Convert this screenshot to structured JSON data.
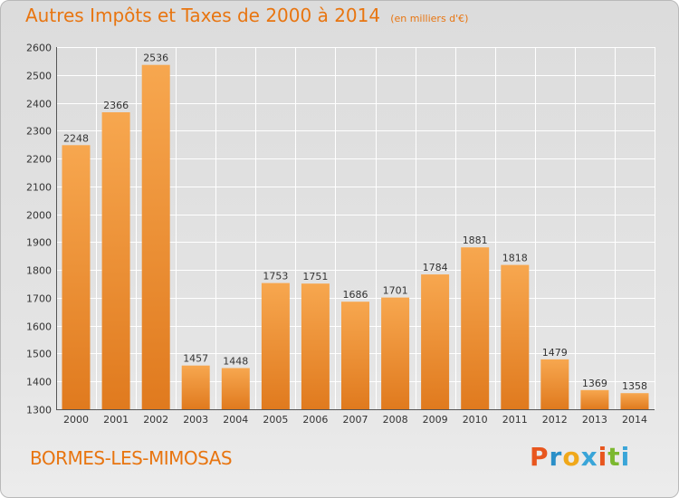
{
  "title": "Autres Impôts et Taxes de 2000 à 2014",
  "subtitle": "(en milliers d'€)",
  "location": "BORMES-LES-MIMOSAS",
  "brand": {
    "letters": [
      "P",
      "r",
      "o",
      "x",
      "i",
      "t",
      "i"
    ],
    "colors": [
      "#e8561e",
      "#2a8fc8",
      "#f0a81a",
      "#3aa5d8",
      "#e8561e",
      "#7cb82f",
      "#3aa5d8"
    ]
  },
  "colors": {
    "bar_light": "#f7a74f",
    "bar_dark": "#e07a1e",
    "accent": "#e87510",
    "grid": "#ffffff",
    "text": "#333333"
  },
  "chart_data": {
    "type": "bar",
    "title": "Autres Impôts et Taxes de 2000 à 2014",
    "subtitle": "(en milliers d'€)",
    "categories": [
      "2000",
      "2001",
      "2002",
      "2003",
      "2004",
      "2005",
      "2006",
      "2007",
      "2008",
      "2009",
      "2010",
      "2011",
      "2012",
      "2013",
      "2014"
    ],
    "values": [
      2248,
      2366,
      2536,
      1457,
      1448,
      1753,
      1751,
      1686,
      1701,
      1784,
      1881,
      1818,
      1479,
      1369,
      1358
    ],
    "ylim": [
      1300,
      2600
    ],
    "yticks": [
      1300,
      1400,
      1500,
      1600,
      1700,
      1800,
      1900,
      2000,
      2100,
      2200,
      2300,
      2400,
      2500,
      2600
    ],
    "grid": true,
    "xlabel": "",
    "ylabel": ""
  }
}
